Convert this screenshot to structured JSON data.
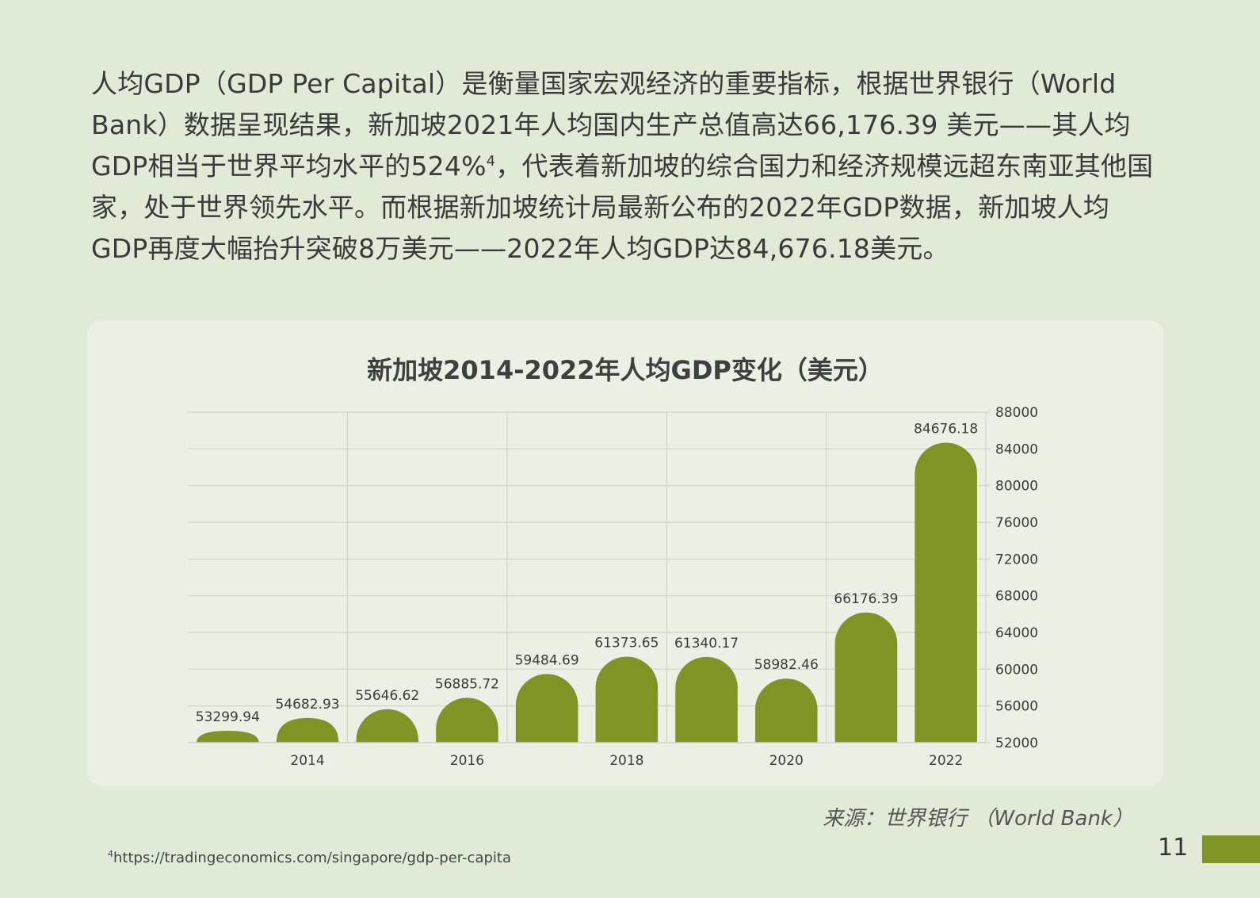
{
  "paragraph": {
    "part1": "人均GDP（GDP Per Capital）是衡量国家宏观经济的重要指标，根据世界银行（World Bank）数据呈现结果，新加坡2021年人均国内生产总值高达66,176.39 美元——其人均GDP相当于世界平均水平的524%",
    "footnote_mark": "4",
    "part2": "，代表着新加坡的综合国力和经济规模远超东南亚其他国家，处于世界领先水平。而根据新加坡统计局最新公布的2022年GDP数据，新加坡人均GDP再度大幅抬升突破8万美元——2022年人均GDP达84,676.18美元。"
  },
  "colors": {
    "background": "#e1e9d7",
    "panel": "#ebf0e5",
    "bar": "#7f9424",
    "grid": "#cfd4cb"
  },
  "chart_data": {
    "type": "bar",
    "title": "新加坡2014-2022年人均GDP变化（美元）",
    "categories": [
      "",
      "2014",
      "",
      "2016",
      "",
      "2018",
      "",
      "2020",
      "",
      "2022"
    ],
    "values": [
      53299.94,
      54682.93,
      55646.62,
      56885.72,
      59484.69,
      61373.65,
      61340.17,
      58982.46,
      66176.39,
      84676.18
    ],
    "data_labels": [
      "53299.94",
      "54682.93",
      "55646.62",
      "56885.72",
      "59484.69",
      "61373.65",
      "61340.17",
      "58982.46",
      "66176.39",
      "84676.18"
    ],
    "yticks": [
      "52000",
      "56000",
      "60000",
      "64000",
      "68000",
      "72000",
      "76000",
      "80000",
      "84000",
      "88000"
    ],
    "ylim": [
      52000,
      88000
    ],
    "y_axis_side": "right",
    "grid": true,
    "bar_shape": "rounded-top"
  },
  "source": "来源：世界银行 （World Bank）",
  "footnote": {
    "mark": "4",
    "text": "https://tradingeconomics.com/singapore/gdp-per-capita"
  },
  "page_number": "11"
}
